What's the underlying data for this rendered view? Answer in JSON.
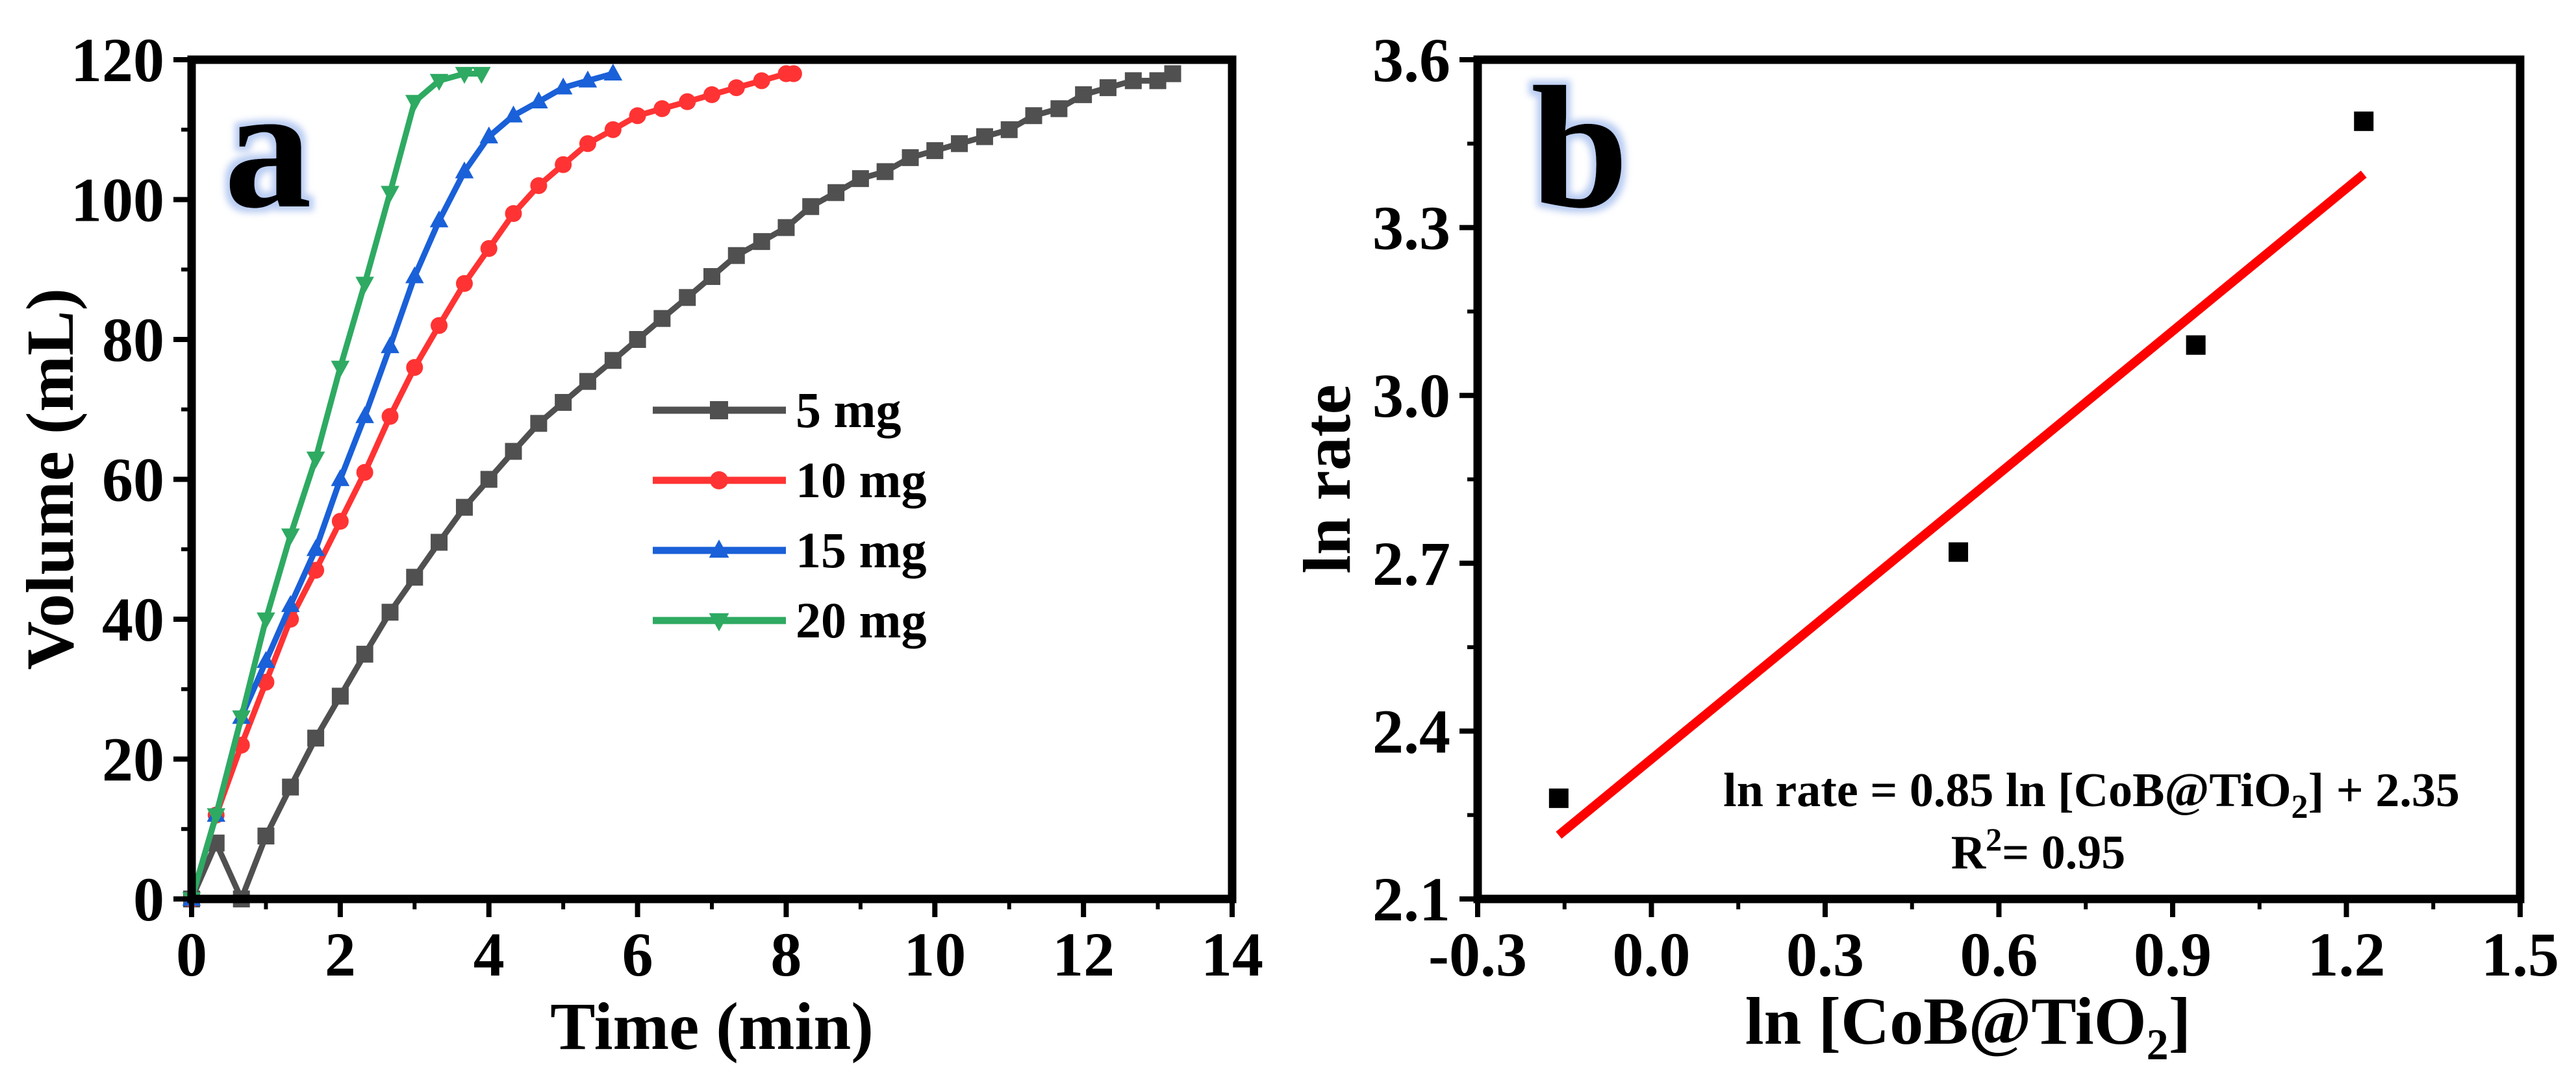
{
  "chart_data": [
    {
      "type": "line",
      "panel_label": "a",
      "xlabel": "Time (min)",
      "ylabel": "Volume (mL)",
      "xlim": [
        0,
        14
      ],
      "ylim": [
        0,
        120
      ],
      "xticks": [
        0,
        2,
        4,
        6,
        8,
        10,
        12,
        14
      ],
      "yticks": [
        0,
        20,
        40,
        60,
        80,
        100,
        120
      ],
      "legend_position": "center",
      "series": [
        {
          "name": "5 mg",
          "color": "#505050",
          "marker": "square",
          "x": [
            0,
            0.33,
            0.67,
            1.0,
            1.33,
            1.67,
            2.0,
            2.33,
            2.67,
            3.0,
            3.33,
            3.67,
            4.0,
            4.33,
            4.67,
            5.0,
            5.33,
            5.67,
            6.0,
            6.33,
            6.67,
            7.0,
            7.33,
            7.67,
            8.0,
            8.33,
            8.67,
            9.0,
            9.33,
            9.67,
            10.0,
            10.33,
            10.67,
            11.0,
            11.33,
            11.67,
            12.0,
            12.33,
            12.67,
            13.0,
            13.2
          ],
          "y": [
            0,
            8,
            0,
            9,
            16,
            23,
            29,
            35,
            41,
            46,
            51,
            56,
            60,
            64,
            68,
            71,
            74,
            77,
            80,
            83,
            86,
            89,
            92,
            94,
            96,
            99,
            101,
            103,
            104,
            106,
            107,
            108,
            109,
            110,
            112,
            113,
            115,
            116,
            117,
            117,
            118
          ]
        },
        {
          "name": "10 mg",
          "color": "#ff3333",
          "marker": "circle",
          "x": [
            0,
            0.33,
            0.67,
            1.0,
            1.33,
            1.67,
            2.0,
            2.33,
            2.67,
            3.0,
            3.33,
            3.67,
            4.0,
            4.33,
            4.67,
            5.0,
            5.33,
            5.67,
            6.0,
            6.33,
            6.67,
            7.0,
            7.33,
            7.67,
            8.0,
            8.1
          ],
          "y": [
            0,
            12,
            22,
            31,
            40,
            47,
            54,
            61,
            69,
            76,
            82,
            88,
            93,
            98,
            102,
            105,
            108,
            110,
            112,
            113,
            114,
            115,
            116,
            117,
            118,
            118
          ]
        },
        {
          "name": "15 mg",
          "color": "#1a60d8",
          "marker": "triangle-up",
          "x": [
            0,
            0.33,
            0.67,
            1.0,
            1.33,
            1.67,
            2.0,
            2.33,
            2.67,
            3.0,
            3.33,
            3.67,
            4.0,
            4.33,
            4.67,
            5.0,
            5.33,
            5.67
          ],
          "y": [
            0,
            12,
            26,
            34,
            42,
            50,
            60,
            69,
            79,
            89,
            97,
            104,
            109,
            112,
            114,
            116,
            117,
            118
          ]
        },
        {
          "name": "20 mg",
          "color": "#2eaa62",
          "marker": "triangle-down",
          "x": [
            0,
            0.33,
            0.67,
            1.0,
            1.33,
            1.67,
            2.0,
            2.33,
            2.67,
            3.0,
            3.33,
            3.67,
            3.9
          ],
          "y": [
            0,
            12,
            26,
            40,
            52,
            63,
            76,
            88,
            101,
            114,
            117,
            118,
            118
          ]
        }
      ]
    },
    {
      "type": "scatter",
      "panel_label": "b",
      "xlabel": "ln [CoB@TiO",
      "xlabel_sub": "2",
      "xlabel_end": "]",
      "ylabel": "ln rate",
      "xlim": [
        -0.3,
        1.5
      ],
      "ylim": [
        2.1,
        3.6
      ],
      "xticks": [
        -0.3,
        0.0,
        0.3,
        0.6,
        0.9,
        1.2,
        1.5
      ],
      "xtick_labels": [
        "-0.3",
        "0.0",
        "0.3",
        "0.6",
        "0.9",
        "1.2",
        "1.5"
      ],
      "yticks": [
        2.1,
        2.4,
        2.7,
        3.0,
        3.3,
        3.6
      ],
      "ytick_labels": [
        "2.1",
        "2.4",
        "2.7",
        "3.0",
        "3.3",
        "3.6"
      ],
      "points": {
        "x": [
          -0.16,
          0.53,
          0.94,
          1.23
        ],
        "y": [
          2.28,
          2.72,
          3.09,
          3.49
        ]
      },
      "point_color": "#000000",
      "fit": {
        "slope": 0.85,
        "intercept": 2.35,
        "x_range": [
          -0.16,
          1.23
        ],
        "color": "#ff0000"
      },
      "equation_label": {
        "prefix": "ln rate = 0.85 ln  [CoB@TiO",
        "sub": "2",
        "suffix": "] + 2.35",
        "r2_prefix": "R",
        "r2_sup": "2",
        "r2_suffix": "= 0.95"
      }
    }
  ]
}
